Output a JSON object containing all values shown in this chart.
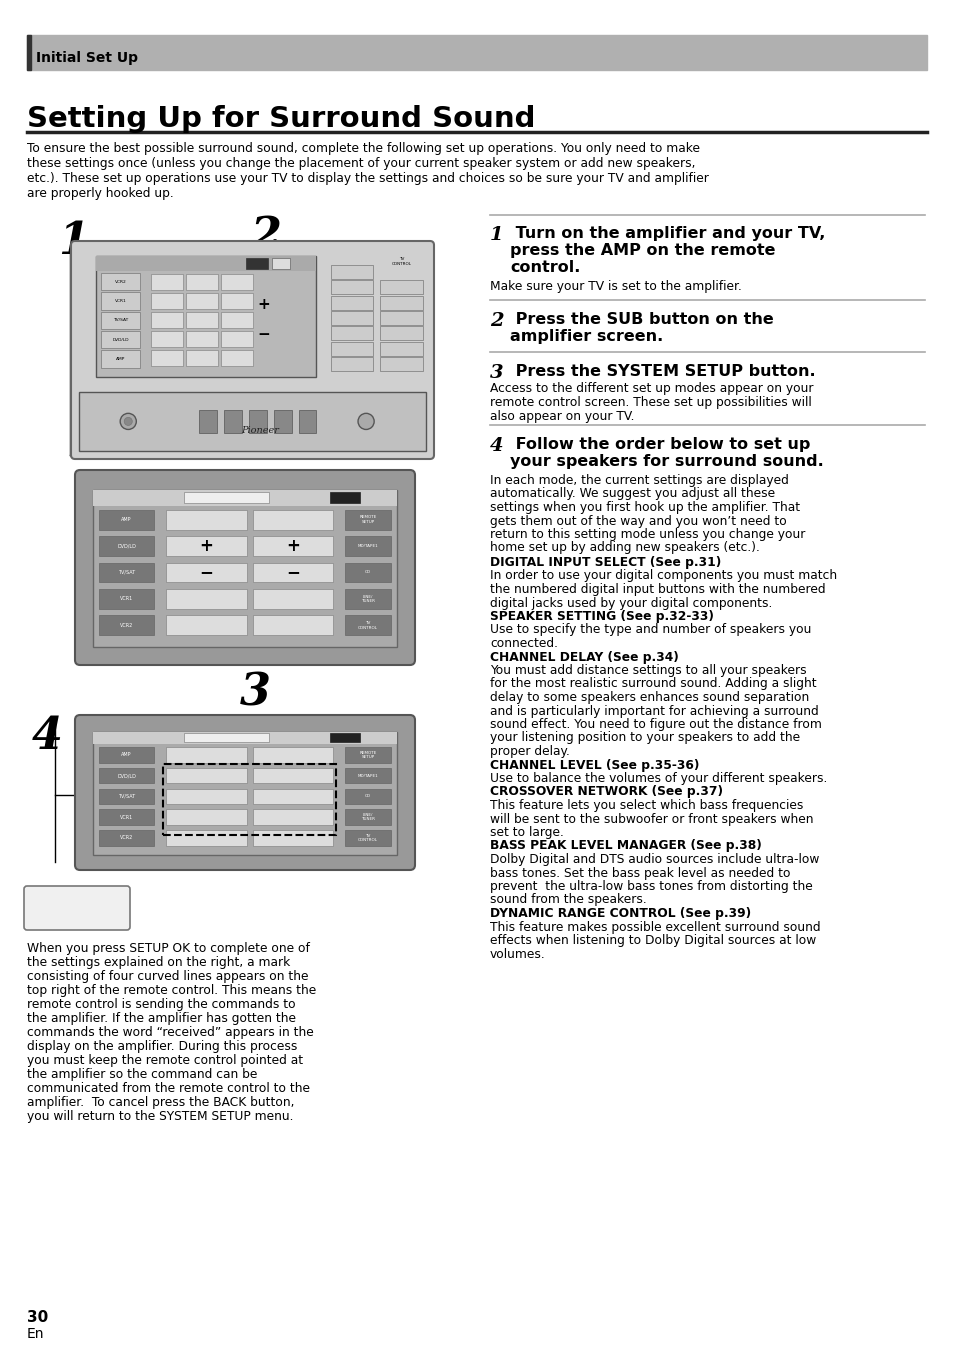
{
  "page_bg": "#ffffff",
  "header_bg": "#aaaaaa",
  "header_text": "Initial Set Up",
  "title": "Setting Up for Surround Sound",
  "intro_text": "To ensure the best possible surround sound, complete the following set up operations. You only need to make\nthese settings once (unless you change the placement of your current speaker system or add new speakers,\netc.). These set up operations use your TV to display the settings and choices so be sure your TV and amplifier\nare properly hooked up.",
  "step1_body": "Make sure your TV is set to the amplifier.",
  "step3_body_lines": [
    "Access to the different set up modes appear on your",
    "remote control screen. These set up possibilities will",
    "also appear on your TV."
  ],
  "step4_body_lines": [
    "In each mode, the current settings are displayed",
    "automatically. We suggest you adjust all these",
    "settings when you first hook up the amplifier. That",
    "gets them out of the way and you won’t need to",
    "return to this setting mode unless you change your",
    "home set up by adding new speakers (etc.)."
  ],
  "digital_input_label": "DIGITAL INPUT SELECT (See p.31)",
  "digital_input_body": [
    "In order to use your digital components you must match",
    "the numbered digital input buttons with the numbered",
    "digital jacks used by your digital components."
  ],
  "speaker_setting_label": "SPEAKER SETTING (See p.32-33)",
  "speaker_setting_body": [
    "Use to specify the type and number of speakers you",
    "connected."
  ],
  "channel_delay_label": "CHANNEL DELAY (See p.34)",
  "channel_delay_body": [
    "You must add distance settings to all your speakers",
    "for the most realistic surround sound. Adding a slight",
    "delay to some speakers enhances sound separation",
    "and is particularly important for achieving a surround",
    "sound effect. You need to figure out the distance from",
    "your listening position to your speakers to add the",
    "proper delay."
  ],
  "channel_level_label": "CHANNEL LEVEL (See p.35-36)",
  "channel_level_body": [
    "Use to balance the volumes of your different speakers."
  ],
  "crossover_label": "CROSSOVER NETWORK (See p.37)",
  "crossover_body": [
    "This feature lets you select which bass frequencies",
    "will be sent to the subwoofer or front speakers when",
    "set to large."
  ],
  "bass_label": "BASS PEAK LEVEL MANAGER (See p.38)",
  "bass_body": [
    "Dolby Digital and DTS audio sources include ultra-low",
    "bass tones. Set the bass peak level as needed to",
    "prevent  the ultra-low bass tones from distorting the",
    "sound from the speakers."
  ],
  "dynamic_label": "DYNAMIC RANGE CONTROL (See p.39)",
  "dynamic_body": [
    "This feature makes possible excellent surround sound",
    "effects when listening to Dolby Digital sources at low",
    "volumes."
  ],
  "memo_lines": [
    "When you press SETUP OK to complete one of",
    "the settings explained on the right, a mark",
    "consisting of four curved lines appears on the",
    "top right of the remote control. This means the",
    "remote control is sending the commands to",
    "the amplifier. If the amplifier has gotten the",
    "commands the word “received” appears in the",
    "display on the amplifier. During this process",
    "you must keep the remote control pointed at",
    "the amplifier so the command can be",
    "communicated from the remote control to the",
    "amplifier.  To cancel press the BACK button,",
    "you will return to the SYSTEM SETUP menu."
  ],
  "page_num": "30",
  "page_en": "En"
}
